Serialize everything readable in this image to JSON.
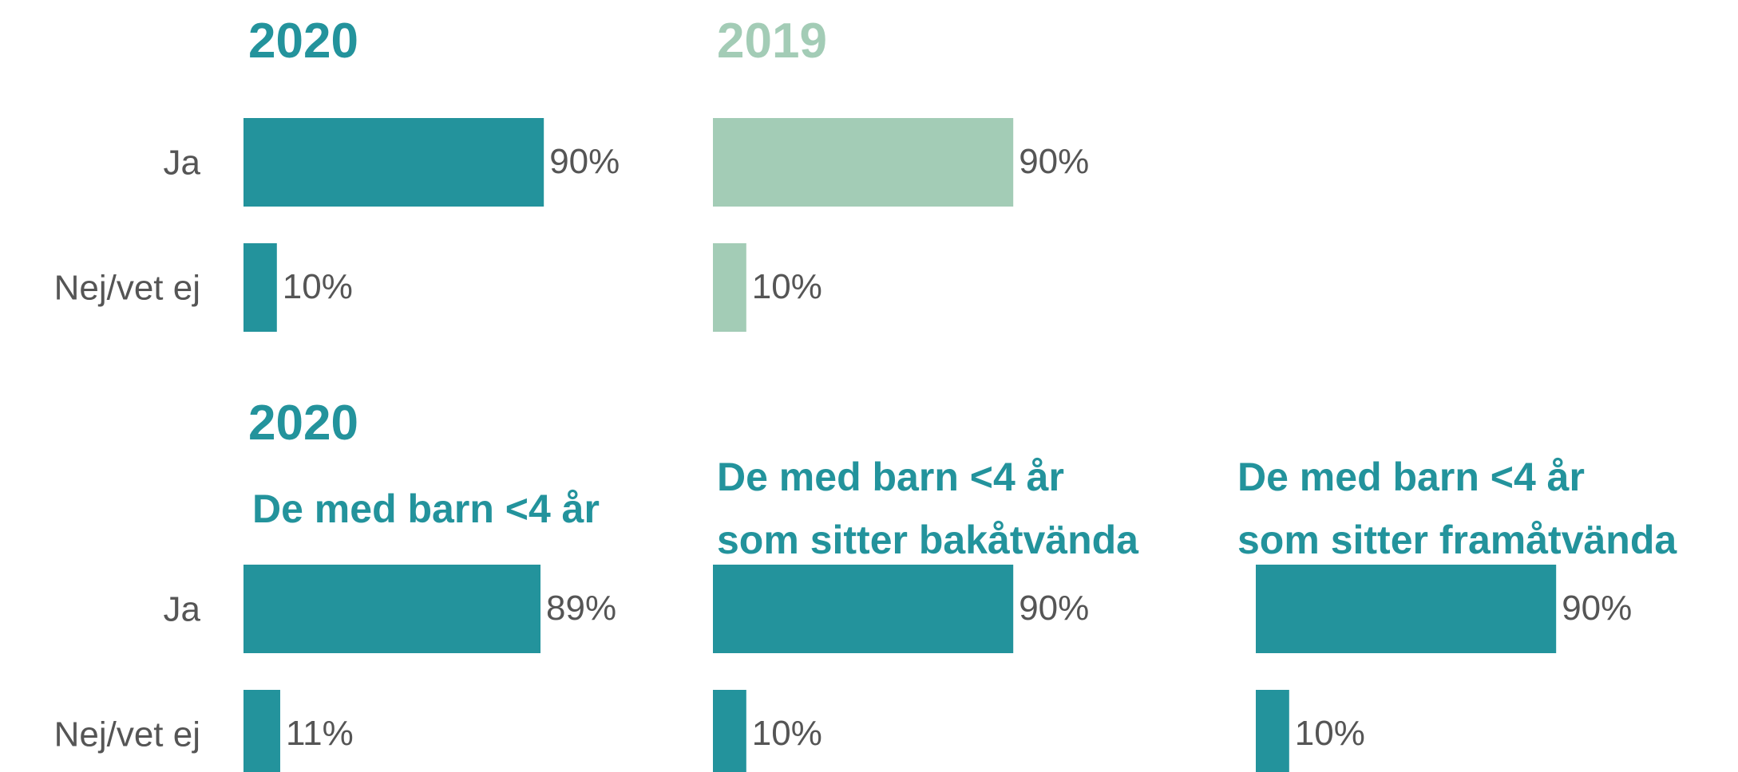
{
  "section_title": "2020",
  "chart_data": [
    {
      "type": "barh",
      "title": [
        "2020"
      ],
      "categories": [
        "Ja",
        "Nej/vet ej"
      ],
      "values": [
        90,
        10
      ],
      "value_labels": [
        "90%",
        "10%"
      ],
      "color": "#23939c",
      "xlim": [
        0,
        100
      ]
    },
    {
      "type": "barh",
      "title": [
        "2019"
      ],
      "categories": [
        null,
        null
      ],
      "values": [
        90,
        10
      ],
      "value_labels": [
        "90%",
        "10%"
      ],
      "color": "#a3ccb6",
      "xlim": [
        0,
        100
      ]
    },
    {
      "type": "barh",
      "title": [
        "De med barn <4 år"
      ],
      "categories": [
        "Ja",
        "Nej/vet ej"
      ],
      "values": [
        89,
        11
      ],
      "value_labels": [
        "89%",
        "11%"
      ],
      "color": "#23939c",
      "xlim": [
        0,
        100
      ]
    },
    {
      "type": "barh",
      "title": [
        "De med barn <4 år",
        "som sitter bakåtvända"
      ],
      "categories": [
        null,
        null
      ],
      "values": [
        90,
        10
      ],
      "value_labels": [
        "90%",
        "10%"
      ],
      "color": "#23939c",
      "xlim": [
        0,
        100
      ]
    },
    {
      "type": "barh",
      "title": [
        "De med barn <4 år",
        "som sitter framåtvända"
      ],
      "categories": [
        null,
        null
      ],
      "values": [
        90,
        10
      ],
      "value_labels": [
        "90%",
        "10%"
      ],
      "color": "#23939c",
      "xlim": [
        0,
        100
      ]
    }
  ]
}
